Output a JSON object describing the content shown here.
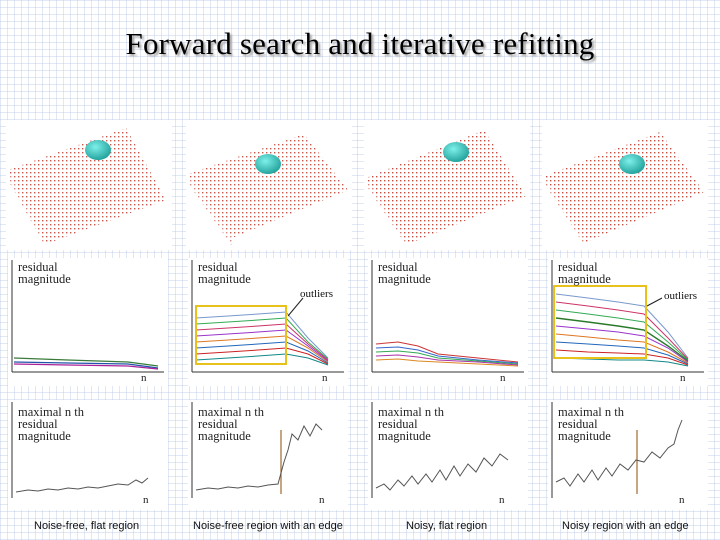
{
  "title": "Forward search and iterative refitting",
  "residual_label": "residual\nmagnitude",
  "maximal_label": "maximal n th\nresidual\nmagnitude",
  "axis_n": "n",
  "outliers_label": "outliers",
  "captions": [
    "Noise-free, flat region",
    "Noise-free region with an edge",
    "Noisy, flat region",
    "Noisy region with an edge"
  ],
  "colors": {
    "points": "#c0392b",
    "sphere": "#2bb5b0",
    "box": "#e8c21a",
    "edge_line": "#a0692f"
  }
}
